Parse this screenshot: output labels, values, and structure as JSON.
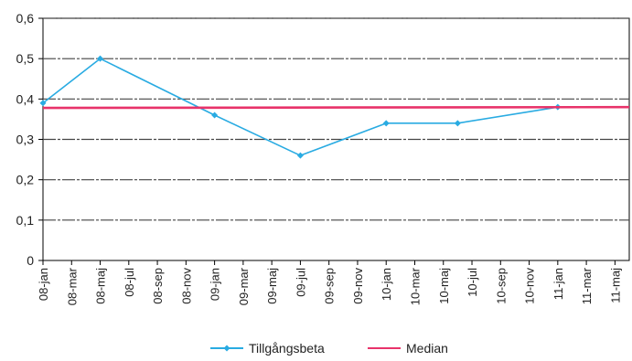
{
  "chart_data": {
    "type": "line",
    "title": "",
    "xlabel": "",
    "ylabel": "",
    "categories": [
      "08-jan",
      "08-mar",
      "08-maj",
      "08-jul",
      "08-sep",
      "08-nov",
      "09-jan",
      "09-mar",
      "09-maj",
      "09-jul",
      "09-sep",
      "09-nov",
      "10-jan",
      "10-mar",
      "10-maj",
      "10-jul",
      "10-sep",
      "10-nov",
      "11-jan",
      "11-mar",
      "11-maj"
    ],
    "ylim": [
      0,
      0.6
    ],
    "yticks": [
      "0",
      "0,1",
      "0,2",
      "0,3",
      "0,4",
      "0,5",
      "0,6"
    ],
    "grid": true,
    "legend_position": "bottom",
    "series": [
      {
        "name": "Tillgångsbeta",
        "color": "#29ABE2",
        "marker": "diamond",
        "points": [
          {
            "x": "08-jan",
            "y": 0.39
          },
          {
            "x": "08-maj",
            "y": 0.5
          },
          {
            "x": "09-jan",
            "y": 0.36
          },
          {
            "x": "09-jul",
            "y": 0.26
          },
          {
            "x": "10-jan",
            "y": 0.34
          },
          {
            "x": "10-jun",
            "y": 0.34
          },
          {
            "x": "11-jan",
            "y": 0.38
          },
          {
            "x": "11-jun",
            "y": 0.38
          }
        ]
      },
      {
        "name": "Median",
        "color": "#E8336A",
        "marker": "none",
        "points": [
          {
            "x": "08-jan",
            "y": 0.378
          },
          {
            "x": "11-jun",
            "y": 0.38
          }
        ]
      }
    ]
  }
}
